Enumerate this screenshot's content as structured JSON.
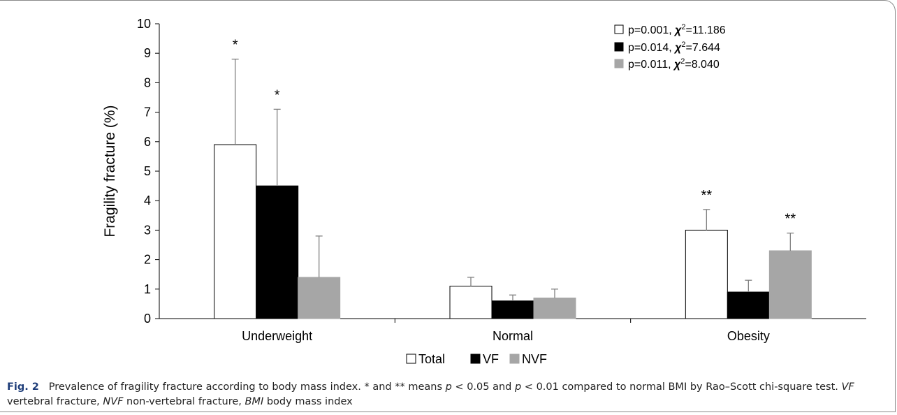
{
  "chart_data": {
    "type": "bar",
    "ylabel": "Fragility fracture (%)",
    "ylim": [
      0,
      10
    ],
    "yticks": [
      0,
      1,
      2,
      3,
      4,
      5,
      6,
      7,
      8,
      9,
      10
    ],
    "categories": [
      "Underweight",
      "Normal",
      "Obesity"
    ],
    "series": [
      {
        "name": "Total",
        "color": "#ffffff",
        "stroke": "#000000",
        "values": [
          5.9,
          1.1,
          3.0
        ],
        "error_upper": [
          8.8,
          1.4,
          3.7
        ],
        "stars": [
          "*",
          "",
          "**"
        ]
      },
      {
        "name": "VF",
        "color": "#000000",
        "stroke": "#000000",
        "values": [
          4.5,
          0.6,
          0.9
        ],
        "error_upper": [
          7.1,
          0.8,
          1.3
        ],
        "stars": [
          "*",
          "",
          ""
        ]
      },
      {
        "name": "NVF",
        "color": "#a6a6a6",
        "stroke": "#a6a6a6",
        "values": [
          1.4,
          0.7,
          2.3
        ],
        "error_upper": [
          2.8,
          1.0,
          2.9
        ],
        "stars": [
          "",
          "",
          "**"
        ]
      }
    ],
    "stats_legend": [
      {
        "p": "p=0.001, ",
        "chi": "χ",
        "sup": "2",
        "val": "=11.186"
      },
      {
        "p": "p=0.014, ",
        "chi": "χ",
        "sup": "2",
        "val": "=7.644"
      },
      {
        "p": "p=0.011, ",
        "chi": "χ",
        "sup": "2",
        "val": "=8.040"
      }
    ],
    "grid": false,
    "legend_position": "bottom"
  },
  "caption": {
    "label": "Fig. 2",
    "text": "Prevalence of fragility fracture according to body mass index. * and ** means p < 0.05 and p < 0.01 compared to normal BMI by Rao–Scott chi-square test. VF vertebral fracture, NVF non-vertebral fracture, BMI body mass index"
  }
}
